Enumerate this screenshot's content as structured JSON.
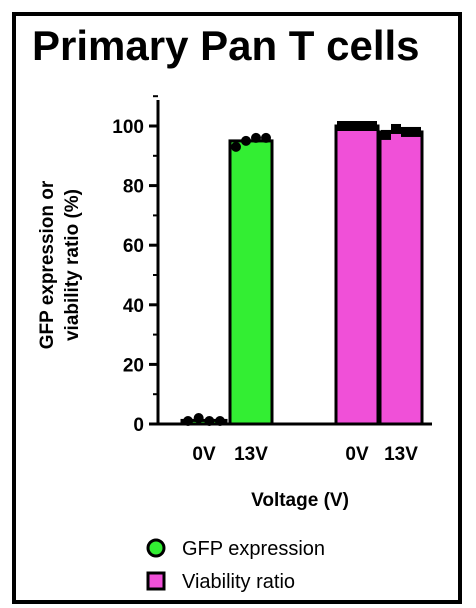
{
  "chart_data": {
    "type": "bar",
    "title": "Primary Pan T cells",
    "xlabel": "Voltage (V)",
    "ylabel_lines": [
      "GFP expression or",
      "viability ratio (%)"
    ],
    "ylim": [
      0,
      100
    ],
    "yticks": [
      0,
      20,
      40,
      60,
      80,
      100
    ],
    "legend_position": "bottom",
    "series": [
      {
        "name": "GFP expression",
        "marker": "circle",
        "color": "#33ee33",
        "groups": [
          {
            "label": "0V",
            "value": 1.2
          },
          {
            "label": "13V",
            "value": 95
          }
        ]
      },
      {
        "name": "Viability ratio",
        "marker": "square",
        "color": "#f050d8",
        "groups": [
          {
            "label": "0V",
            "value": 100
          },
          {
            "label": "13V",
            "value": 98
          }
        ]
      }
    ],
    "points": [
      {
        "series": 0,
        "group": 0,
        "values": [
          1,
          2,
          1,
          1
        ]
      },
      {
        "series": 0,
        "group": 1,
        "values": [
          93,
          95,
          96,
          96
        ]
      },
      {
        "series": 1,
        "group": 0,
        "values": [
          100,
          100,
          100,
          100
        ]
      },
      {
        "series": 1,
        "group": 1,
        "values": [
          97,
          99,
          98,
          98
        ]
      }
    ]
  }
}
